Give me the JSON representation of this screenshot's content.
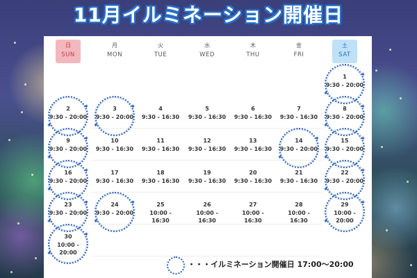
{
  "title": "11月イルミネーション開催日",
  "weekdays": [
    {
      "k": "日",
      "e": "SUN"
    },
    {
      "k": "月",
      "e": "MON"
    },
    {
      "k": "火",
      "e": "TUE"
    },
    {
      "k": "水",
      "e": "WED"
    },
    {
      "k": "木",
      "e": "THU"
    },
    {
      "k": "金",
      "e": "FRI"
    },
    {
      "k": "土",
      "e": "SAT"
    }
  ],
  "days": [
    {
      "d": "1",
      "h": "9:30 - 20:00",
      "illum": true
    },
    {
      "d": "2",
      "h": "9:30 - 20:00",
      "illum": true
    },
    {
      "d": "3",
      "h": "9:30 - 20:00",
      "illum": true
    },
    {
      "d": "4",
      "h": "9:30 - 16:30",
      "illum": false
    },
    {
      "d": "5",
      "h": "9:30 - 16:30",
      "illum": false
    },
    {
      "d": "6",
      "h": "9:30 - 16:30",
      "illum": false
    },
    {
      "d": "7",
      "h": "9:30 - 16:30",
      "illum": false
    },
    {
      "d": "8",
      "h": "9:30 - 20:00",
      "illum": true
    },
    {
      "d": "9",
      "h": "9:30 - 20:00",
      "illum": true
    },
    {
      "d": "10",
      "h": "9:30 - 16:30",
      "illum": false
    },
    {
      "d": "11",
      "h": "9:30 - 16:30",
      "illum": false
    },
    {
      "d": "12",
      "h": "9:30 - 16:30",
      "illum": false
    },
    {
      "d": "13",
      "h": "9:30 - 16:30",
      "illum": false
    },
    {
      "d": "14",
      "h": "9:30 - 20:00",
      "illum": true
    },
    {
      "d": "15",
      "h": "9:30 - 20:00",
      "illum": true
    },
    {
      "d": "16",
      "h": "9:30 - 20:00",
      "illum": true
    },
    {
      "d": "17",
      "h": "9:30 - 16:30",
      "illum": false
    },
    {
      "d": "18",
      "h": "9:30 - 16:30",
      "illum": false
    },
    {
      "d": "19",
      "h": "9:30 - 16:30",
      "illum": false
    },
    {
      "d": "20",
      "h": "9:30 - 16:30",
      "illum": false
    },
    {
      "d": "21",
      "h": "9:30 - 16:30",
      "illum": false
    },
    {
      "d": "22",
      "h": "9:30 - 20:00",
      "illum": true
    },
    {
      "d": "23",
      "h": "9:30 - 20:00",
      "illum": true
    },
    {
      "d": "24",
      "h": "9:30 - 20:00",
      "illum": true
    },
    {
      "d": "25",
      "h": "10:00 -\n16:30",
      "illum": false
    },
    {
      "d": "26",
      "h": "10:00 -\n16:30",
      "illum": false
    },
    {
      "d": "27",
      "h": "10:00 -\n16:30",
      "illum": false
    },
    {
      "d": "28",
      "h": "10:00 -\n16:30",
      "illum": false
    },
    {
      "d": "29",
      "h": "10:00 -\n20:00",
      "illum": true
    },
    {
      "d": "30",
      "h": "10:00 -\n20:00",
      "illum": true
    }
  ],
  "legend": {
    "text": "・・・イルミネーション開催日 17:00〜20:00",
    "icon": "dotted-ring-icon"
  },
  "colors": {
    "title_outline": "#2a73c9",
    "sun_header": "#f2b8bd",
    "sat_header": "#bfe1f7",
    "ring": "#2b5fb8"
  }
}
